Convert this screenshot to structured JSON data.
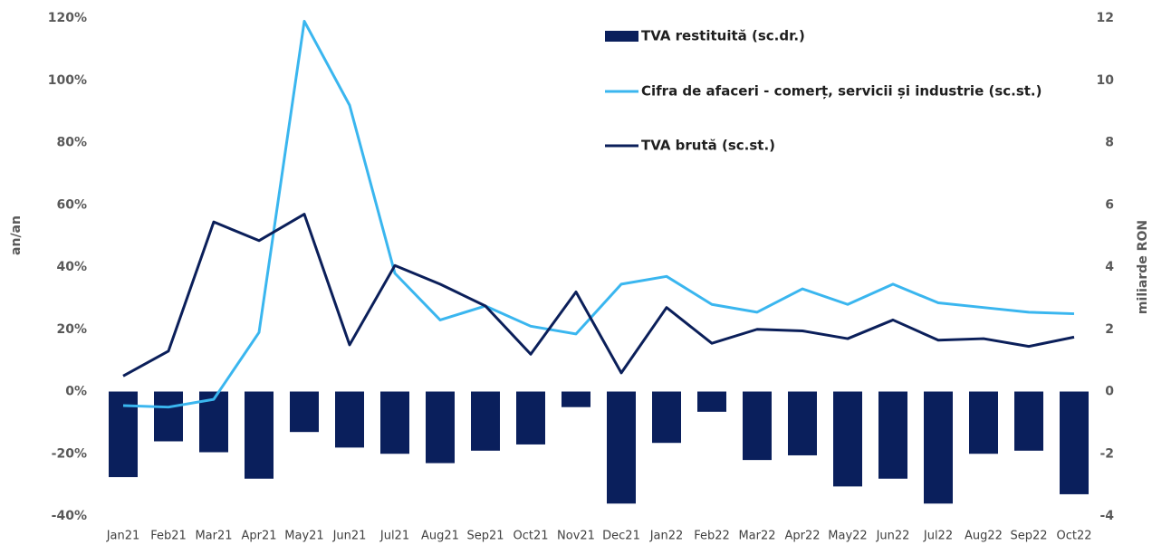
{
  "chart_data": {
    "type": "bar",
    "categories": [
      "Jan21",
      "Feb21",
      "Mar21",
      "Apr21",
      "May21",
      "Jun21",
      "Jul21",
      "Aug21",
      "Sep21",
      "Oct21",
      "Nov21",
      "Dec21",
      "Jan22",
      "Feb22",
      "Mar22",
      "Apr22",
      "May22",
      "Jun22",
      "Jul22",
      "Aug22",
      "Sep22",
      "Oct22"
    ],
    "series": [
      {
        "name": "TVA restituită (sc.dr.)",
        "type": "bar",
        "axis": "y2",
        "color": "#0a1f5c",
        "values": [
          -2.75,
          -1.6,
          -1.95,
          -2.8,
          -1.3,
          -1.8,
          -2.0,
          -2.3,
          -1.9,
          -1.7,
          -0.5,
          -3.6,
          -1.65,
          -0.65,
          -2.2,
          -2.05,
          -3.05,
          -2.8,
          -3.6,
          -2.0,
          -1.9,
          -3.3
        ]
      },
      {
        "name": "Cifra de afaceri - comerț, servicii și industrie (sc.st.)",
        "type": "line",
        "color": "#3ab6ef",
        "values": [
          -4.5,
          -5,
          -2.5,
          19,
          119,
          92,
          38,
          23,
          27.5,
          21,
          18.5,
          34.5,
          37,
          28,
          25.5,
          33,
          28,
          34.5,
          28.5,
          27,
          25.5,
          25
        ]
      },
      {
        "name": "TVA brută (sc.st.)",
        "type": "line",
        "color": "#0b1f5a",
        "values": [
          5,
          13,
          54.5,
          48.5,
          57,
          15,
          40.5,
          34.5,
          27.5,
          12,
          32,
          6,
          27,
          15.5,
          20,
          19.5,
          17,
          23,
          16.5,
          17,
          14.5,
          17.5
        ]
      }
    ],
    "ylabel": "an/an",
    "y2label": "miliarde RON",
    "ylim": [
      -40,
      120
    ],
    "yticks": [
      {
        "value": -40,
        "label": "-40%"
      },
      {
        "value": -20,
        "label": "-20%"
      },
      {
        "value": 0,
        "label": "0%"
      },
      {
        "value": 20,
        "label": "20%"
      },
      {
        "value": 40,
        "label": "40%"
      },
      {
        "value": 60,
        "label": "60%"
      },
      {
        "value": 80,
        "label": "80%"
      },
      {
        "value": 100,
        "label": "100%"
      },
      {
        "value": 120,
        "label": "120%"
      }
    ],
    "y2lim": [
      -4,
      12
    ],
    "y2ticks": [
      -4,
      -2,
      0,
      2,
      4,
      6,
      8,
      10,
      12
    ],
    "grid": false
  }
}
